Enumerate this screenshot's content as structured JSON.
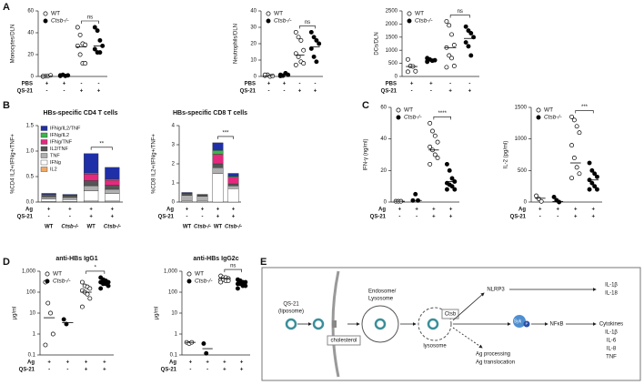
{
  "panels": [
    "A",
    "B",
    "C",
    "D",
    "E"
  ],
  "chart_data": [
    {
      "type": "strip",
      "y_label": "Monocytes/DLN",
      "ylim": [
        0,
        60
      ],
      "yticks": [
        0,
        20,
        40,
        60
      ],
      "annotation": "ns",
      "rows": [
        {
          "label": "PBS",
          "marks": [
            "+",
            "+",
            "-",
            "-"
          ]
        },
        {
          "label": "QS-21",
          "marks": [
            "-",
            "-",
            "+",
            "+"
          ]
        }
      ],
      "series": [
        {
          "name": "WT",
          "marker": "open",
          "values": [
            [
              0,
              0.3,
              0.5,
              1,
              0.2
            ],
            null,
            [
              45,
              38,
              30,
              29,
              28,
              20,
              12,
              12
            ],
            null
          ],
          "means": [
            0.4,
            null,
            27,
            null
          ]
        },
        {
          "name": "Ctsb-/-",
          "marker": "filled",
          "values": [
            null,
            [
              1,
              1.5,
              0.5,
              1,
              0.5
            ],
            null,
            [
              45,
              42,
              33,
              28,
              25,
              22,
              22
            ]
          ],
          "means": [
            null,
            1,
            null,
            28
          ]
        }
      ]
    },
    {
      "type": "strip",
      "y_label": "Neutrophils/DLN",
      "ylim": [
        0,
        40
      ],
      "yticks": [
        0,
        10,
        20,
        30,
        40
      ],
      "annotation": "ns",
      "rows": [
        {
          "label": "PBS",
          "marks": [
            "+",
            "+",
            "-",
            "-"
          ]
        },
        {
          "label": "QS-21",
          "marks": [
            "-",
            "-",
            "+",
            "+"
          ]
        }
      ],
      "series": [
        {
          "name": "WT",
          "marker": "open",
          "values": [
            [
              0.5,
              1,
              0,
              0.3,
              1
            ],
            null,
            [
              27,
              24,
              22,
              16,
              14,
              12,
              9,
              8,
              7
            ],
            null
          ],
          "means": [
            0.5,
            null,
            13,
            null
          ]
        },
        {
          "name": "Ctsb-/-",
          "marker": "filled",
          "values": [
            null,
            [
              1,
              0.5,
              2,
              1,
              0.3
            ],
            null,
            [
              27,
              24,
              22,
              20,
              17,
              12,
              9
            ]
          ],
          "means": [
            null,
            1,
            null,
            18
          ]
        }
      ]
    },
    {
      "type": "strip",
      "y_label": "DCs/DLN",
      "ylim": [
        0,
        2500
      ],
      "yticks": [
        0,
        500,
        1000,
        1500,
        2000,
        2500
      ],
      "annotation": "ns",
      "rows": [
        {
          "label": "PBS",
          "marks": [
            "+",
            "+",
            "-",
            "-"
          ]
        },
        {
          "label": "QS-21",
          "marks": [
            "-",
            "-",
            "+",
            "+"
          ]
        }
      ],
      "series": [
        {
          "name": "WT",
          "marker": "open",
          "values": [
            [
              650,
              400,
              380,
              200,
              180
            ],
            null,
            [
              2100,
              1950,
              1600,
              1200,
              1100,
              800,
              700,
              400,
              350
            ],
            null
          ],
          "means": [
            380,
            null,
            1100,
            null
          ]
        },
        {
          "name": "Ctsb-/-",
          "marker": "filled",
          "values": [
            null,
            [
              700,
              650,
              600,
              620,
              560
            ],
            null,
            [
              1900,
              1750,
              1650,
              1500,
              1300,
              1150,
              800
            ]
          ],
          "means": [
            null,
            620,
            null,
            1450
          ]
        }
      ]
    },
    {
      "type": "stacked_bar",
      "title": "HBs-specific CD4 T cells",
      "y_label": "%CD4 IL2+/IFNg+/TNF+",
      "ylim": [
        0,
        1.5
      ],
      "yticks": [
        {
          "value": 0,
          "label": "0.0"
        },
        0.5,
        {
          "value": 1,
          "label": "1.0"
        },
        1.5
      ],
      "annotation": "**",
      "categories": [
        "WT",
        "Ctsb-/-",
        "WT",
        "Ctsb-/-"
      ],
      "rows": [
        {
          "label": "Ag",
          "marks": [
            "+",
            "+",
            "+",
            "+"
          ]
        },
        {
          "label": "QS-21",
          "marks": [
            "-",
            "-",
            "+",
            "+"
          ]
        }
      ],
      "series": [
        {
          "name": "IL2",
          "color": "#f0a868",
          "values": [
            0.01,
            0.01,
            0.02,
            0.02
          ]
        },
        {
          "name": "IFNg",
          "color": "#ffffff",
          "values": [
            0.05,
            0.04,
            0.2,
            0.15
          ]
        },
        {
          "name": "TNF",
          "color": "#b0b0b0",
          "values": [
            0.04,
            0.04,
            0.1,
            0.08
          ]
        },
        {
          "name": "IL2/TNF",
          "color": "#555555",
          "values": [
            0.05,
            0.04,
            0.1,
            0.08
          ]
        },
        {
          "name": "IFNg/TNF",
          "color": "#e6287f",
          "values": [
            0,
            0,
            0.13,
            0.1
          ]
        },
        {
          "name": "IFNg/IL2",
          "color": "#3cb54a",
          "values": [
            0,
            0,
            0.02,
            0.02
          ]
        },
        {
          "name": "IFNg/IL2/TNF",
          "color": "#1f2fa8",
          "values": [
            0.02,
            0.02,
            0.38,
            0.23
          ]
        }
      ]
    },
    {
      "type": "stacked_bar",
      "title": "HBs-specific CD8 T cells",
      "y_label": "%CD8 IL2+/IFNg+/TNF+",
      "ylim": [
        0,
        4
      ],
      "yticks": [
        0,
        1,
        2,
        3,
        4
      ],
      "annotation": "***",
      "categories": [
        "WT",
        "Ctsb-/-",
        "WT",
        "Ctsb-/-"
      ],
      "rows": [
        {
          "label": "Ag",
          "marks": [
            "+",
            "+",
            "+",
            "+"
          ]
        },
        {
          "label": "QS-21",
          "marks": [
            "-",
            "-",
            "+",
            "+"
          ]
        }
      ],
      "series": [
        {
          "name": "IL2",
          "color": "#f0a868",
          "values": [
            0,
            0,
            0,
            0
          ]
        },
        {
          "name": "IFNg",
          "color": "#ffffff",
          "values": [
            0.05,
            0.05,
            1.5,
            0.7
          ]
        },
        {
          "name": "TNF",
          "color": "#b0b0b0",
          "values": [
            0.3,
            0.25,
            0.3,
            0.15
          ]
        },
        {
          "name": "IL2/TNF",
          "color": "#555555",
          "values": [
            0.1,
            0.08,
            0.2,
            0.1
          ]
        },
        {
          "name": "IFNg/TNF",
          "color": "#e6287f",
          "values": [
            0.02,
            0.01,
            0.5,
            0.35
          ]
        },
        {
          "name": "IFNg/IL2",
          "color": "#3cb54a",
          "values": [
            0,
            0,
            0.2,
            0.05
          ]
        },
        {
          "name": "IFNg/IL2/TNF",
          "color": "#1f2fa8",
          "values": [
            0.03,
            0.01,
            0.4,
            0.15
          ]
        }
      ]
    },
    {
      "type": "strip",
      "y_label": "IFN-γ (ng/ml)",
      "ylim": [
        0,
        60
      ],
      "yticks": [
        0,
        20,
        40,
        60
      ],
      "annotation": "****",
      "rows": [
        {
          "label": "Ag",
          "marks": [
            "+",
            "+",
            "+",
            "+"
          ]
        },
        {
          "label": "QS-21",
          "marks": [
            "-",
            "-",
            "+",
            "+"
          ]
        }
      ],
      "series": [
        {
          "name": "WT",
          "marker": "open",
          "values": [
            [
              0.5,
              0.5,
              0.5
            ],
            null,
            [
              50,
              45,
              42,
              38,
              35,
              33,
              30,
              28,
              24
            ],
            null
          ],
          "means": [
            0.5,
            null,
            33,
            null
          ]
        },
        {
          "name": "Ctsb-/-",
          "marker": "filled",
          "values": [
            null,
            [
              1,
              5,
              1
            ],
            null,
            [
              24,
              20,
              15,
              13,
              12,
              11,
              10,
              8,
              8
            ]
          ],
          "means": [
            null,
            1,
            null,
            13
          ]
        }
      ]
    },
    {
      "type": "strip",
      "y_label": "IL-2 (pg/ml)",
      "ylim": [
        0,
        1500
      ],
      "yticks": [
        0,
        500,
        1000,
        1500
      ],
      "annotation": "***",
      "rows": [
        {
          "label": "Ag",
          "marks": [
            "+",
            "+",
            "+",
            "+"
          ]
        },
        {
          "label": "QS-21",
          "marks": [
            "-",
            "-",
            "+",
            "+"
          ]
        }
      ],
      "series": [
        {
          "name": "WT",
          "marker": "open",
          "values": [
            [
              100,
              50,
              10
            ],
            null,
            [
              1350,
              1300,
              1200,
              1100,
              900,
              700,
              550,
              450,
              380
            ],
            null
          ],
          "means": [
            60,
            null,
            620,
            null
          ]
        },
        {
          "name": "Ctsb-/-",
          "marker": "filled",
          "values": [
            null,
            [
              80,
              30,
              0
            ],
            null,
            [
              620,
              500,
              450,
              400,
              350,
              300,
              250,
              200,
              200
            ]
          ],
          "means": [
            null,
            10,
            null,
            350
          ]
        }
      ]
    },
    {
      "type": "strip",
      "title": "anti-HBs IgG1",
      "y_label": "μg/ml",
      "log": true,
      "ylim": [
        0.1,
        1000
      ],
      "yticks": [
        0.1,
        1,
        10,
        100,
        {
          "value": 1000,
          "label": "1,000"
        }
      ],
      "annotation": "*",
      "rows": [
        {
          "label": "Ag",
          "marks": [
            "+",
            "+",
            "+",
            "+"
          ]
        },
        {
          "label": "QS-21",
          "marks": [
            "-",
            "-",
            "+",
            "+"
          ]
        }
      ],
      "series": [
        {
          "name": "WT",
          "marker": "open",
          "values": [
            [
              300,
              30,
              10,
              1,
              0.3
            ],
            null,
            [
              300,
              200,
              180,
              150,
              120,
              100,
              80,
              50,
              20
            ],
            null
          ],
          "means": [
            6,
            null,
            100,
            null
          ]
        },
        {
          "name": "Ctsb-/-",
          "marker": "filled",
          "values": [
            null,
            [
              5,
              3
            ],
            null,
            [
              500,
              400,
              350,
              300,
              300,
              250,
              250,
              200,
              150
            ]
          ],
          "means": [
            null,
            3.5,
            null,
            300
          ]
        }
      ]
    },
    {
      "type": "strip",
      "title": "anti-HBs IgG2c",
      "y_label": "μg/ml",
      "log": true,
      "ylim": [
        0.1,
        1000
      ],
      "yticks": [
        0.1,
        1,
        10,
        100,
        {
          "value": 1000,
          "label": "1,000"
        }
      ],
      "annotation": "ns",
      "rows": [
        {
          "label": "Ag",
          "marks": [
            "+",
            "+",
            "+",
            "+"
          ]
        },
        {
          "label": "QS-21",
          "marks": [
            "-",
            "-",
            "+",
            "+"
          ]
        }
      ],
      "series": [
        {
          "name": "WT",
          "marker": "open",
          "values": [
            [
              0.4,
              0.35,
              0.4
            ],
            null,
            [
              600,
              500,
              500,
              450,
              400,
              400,
              350,
              350,
              300
            ],
            null
          ],
          "means": [
            0.4,
            null,
            450,
            null
          ]
        },
        {
          "name": "Ctsb-/-",
          "marker": "filled",
          "values": [
            null,
            [
              0.35,
              0.12
            ],
            null,
            [
              400,
              350,
              300,
              300,
              250,
              250,
              200,
              200,
              150
            ]
          ],
          "means": [
            null,
            0.2,
            null,
            250
          ]
        }
      ]
    }
  ],
  "diagram": {
    "qs21": [
      "QS-21",
      "(liposome)"
    ],
    "cholesterol": "cholesterol",
    "endosome": [
      "Endosome/",
      "Lysosome"
    ],
    "ctsb": "Ctsb",
    "lysosome": "lysosome",
    "nlrp3": "NLRP3",
    "syk": "Syk",
    "p": "P",
    "nfkb": "NFκB",
    "ag": [
      "Ag processing",
      "Ag translocation"
    ],
    "inflammasome": [
      "IL-1β",
      "IL-18"
    ],
    "cytokines": [
      "Cytokines",
      "IL-1β",
      "IL-6",
      "IL-8",
      "TNF"
    ]
  }
}
